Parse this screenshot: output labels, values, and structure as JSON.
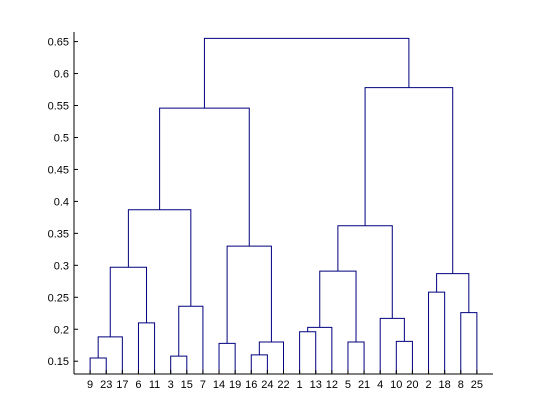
{
  "chart_data": {
    "type": "dendrogram",
    "title": "",
    "xlabel": "",
    "ylabel": "",
    "ylim": [
      0.13,
      0.665
    ],
    "y_ticks": [
      "0.15",
      "0.2",
      "0.25",
      "0.3",
      "0.35",
      "0.4",
      "0.45",
      "0.5",
      "0.55",
      "0.6",
      "0.65"
    ],
    "y_tick_values": [
      0.15,
      0.2,
      0.25,
      0.3,
      0.35,
      0.4,
      0.45,
      0.5,
      0.55,
      0.6,
      0.65
    ],
    "leaf_order": [
      "9",
      "23",
      "17",
      "6",
      "11",
      "3",
      "15",
      "7",
      "14",
      "19",
      "16",
      "24",
      "22",
      "1",
      "13",
      "12",
      "5",
      "21",
      "4",
      "10",
      "20",
      "2",
      "18",
      "8",
      "25"
    ],
    "leaf_baseline": 0.13,
    "line_color": "#00007f",
    "merges": [
      {
        "id": "c1",
        "children": [
          "9",
          "23"
        ],
        "height": 0.155
      },
      {
        "id": "c2",
        "children": [
          "c1",
          "17"
        ],
        "height": 0.188
      },
      {
        "id": "c3",
        "children": [
          "6",
          "11"
        ],
        "height": 0.21
      },
      {
        "id": "c4",
        "children": [
          "c2",
          "c3"
        ],
        "height": 0.297
      },
      {
        "id": "c5",
        "children": [
          "3",
          "15"
        ],
        "height": 0.158
      },
      {
        "id": "c6",
        "children": [
          "c5",
          "7"
        ],
        "height": 0.236
      },
      {
        "id": "c7",
        "children": [
          "c4",
          "c6"
        ],
        "height": 0.387
      },
      {
        "id": "c8",
        "children": [
          "16",
          "24"
        ],
        "height": 0.16
      },
      {
        "id": "c9",
        "children": [
          "14",
          "19"
        ],
        "height": 0.178
      },
      {
        "id": "c10",
        "children": [
          "c8",
          "22"
        ],
        "height": 0.18
      },
      {
        "id": "c11",
        "children": [
          "c9",
          "c10"
        ],
        "height": 0.33
      },
      {
        "id": "c12",
        "children": [
          "c7",
          "c11"
        ],
        "height": 0.546
      },
      {
        "id": "c13",
        "children": [
          "1",
          "13"
        ],
        "height": 0.196
      },
      {
        "id": "c14",
        "children": [
          "c13",
          "12"
        ],
        "height": 0.203
      },
      {
        "id": "c15",
        "children": [
          "5",
          "21"
        ],
        "height": 0.18
      },
      {
        "id": "c16",
        "children": [
          "c14",
          "c15"
        ],
        "height": 0.291
      },
      {
        "id": "c17",
        "children": [
          "10",
          "20"
        ],
        "height": 0.181
      },
      {
        "id": "c18",
        "children": [
          "4",
          "c17"
        ],
        "height": 0.217
      },
      {
        "id": "c19",
        "children": [
          "c16",
          "c18"
        ],
        "height": 0.362
      },
      {
        "id": "c20",
        "children": [
          "2",
          "18"
        ],
        "height": 0.258
      },
      {
        "id": "c21",
        "children": [
          "8",
          "25"
        ],
        "height": 0.226
      },
      {
        "id": "c22",
        "children": [
          "c20",
          "c21"
        ],
        "height": 0.287
      },
      {
        "id": "c23",
        "children": [
          "c19",
          "c22"
        ],
        "height": 0.578
      },
      {
        "id": "c24",
        "children": [
          "c12",
          "c23"
        ],
        "height": 0.655
      }
    ]
  }
}
